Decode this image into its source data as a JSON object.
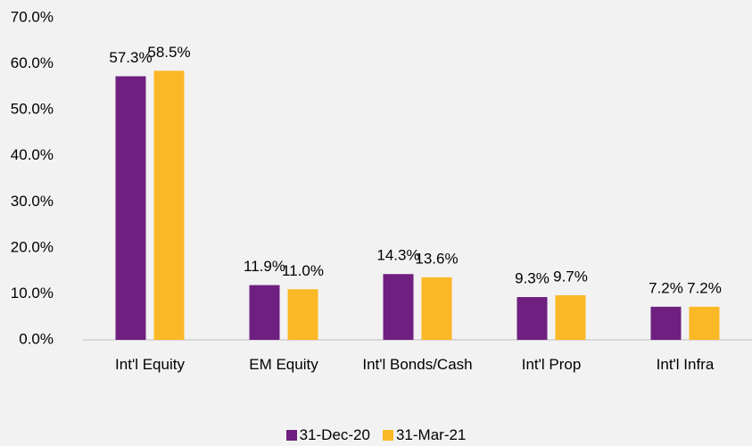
{
  "chart_data": {
    "type": "bar",
    "categories": [
      "Int'l Equity",
      "EM Equity",
      "Int'l Bonds/Cash",
      "Int'l Prop",
      "Int'l Infra"
    ],
    "series": [
      {
        "name": "31-Dec-20",
        "color": "#6f1f80",
        "values": [
          57.3,
          11.9,
          14.3,
          9.3,
          7.2
        ],
        "value_labels": [
          "57.3%",
          "11.9%",
          "14.3%",
          "9.3%",
          "7.2%"
        ]
      },
      {
        "name": "31-Mar-21",
        "color": "#fbb826",
        "values": [
          58.5,
          11.0,
          13.6,
          9.7,
          7.2
        ],
        "value_labels": [
          "58.5%",
          "11.0%",
          "13.6%",
          "9.7%",
          "7.2%"
        ]
      }
    ],
    "ylim": [
      0,
      70
    ],
    "yticks": [
      {
        "value": 0,
        "label": "0.0%"
      },
      {
        "value": 10,
        "label": "10.0%"
      },
      {
        "value": 20,
        "label": "20.0%"
      },
      {
        "value": 30,
        "label": "30.0%"
      },
      {
        "value": 40,
        "label": "40.0%"
      },
      {
        "value": 50,
        "label": "50.0%"
      },
      {
        "value": 60,
        "label": "60.0%"
      },
      {
        "value": 70,
        "label": "70.0%"
      }
    ],
    "grid": false,
    "legend": "bottom"
  }
}
